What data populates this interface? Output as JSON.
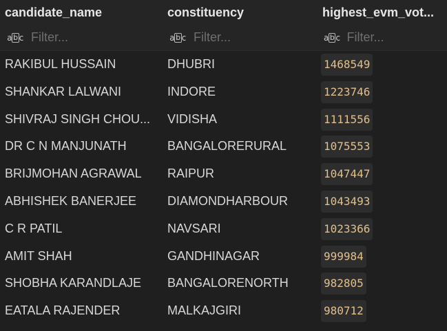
{
  "columns": [
    {
      "name": "candidate_name",
      "filter_placeholder": "Filter..."
    },
    {
      "name": "constituency",
      "filter_placeholder": "Filter..."
    },
    {
      "name": "highest_evm_vot...",
      "filter_placeholder": "Filter..."
    }
  ],
  "filter_icon": "abc-text-type-icon",
  "filter_icon_text": {
    "left": "a",
    "mid": "b",
    "right": "c"
  },
  "colors": {
    "background": "#1f1f1f",
    "header_background": "#252526",
    "number_text": "#e2c08d",
    "number_badge": "#2d2d2d"
  },
  "rows": [
    {
      "candidate_name": "RAKIBUL HUSSAIN",
      "constituency": "DHUBRI",
      "highest_evm_votes": "1468549"
    },
    {
      "candidate_name": "SHANKAR LALWANI",
      "constituency": "INDORE",
      "highest_evm_votes": "1223746"
    },
    {
      "candidate_name": "SHIVRAJ SINGH CHOU...",
      "constituency": "VIDISHA",
      "highest_evm_votes": "1111556"
    },
    {
      "candidate_name": "DR C N MANJUNATH",
      "constituency": "BANGALORERURAL",
      "highest_evm_votes": "1075553"
    },
    {
      "candidate_name": "BRIJMOHAN AGRAWAL",
      "constituency": "RAIPUR",
      "highest_evm_votes": "1047447"
    },
    {
      "candidate_name": "ABHISHEK BANERJEE",
      "constituency": "DIAMONDHARBOUR",
      "highest_evm_votes": "1043493"
    },
    {
      "candidate_name": "C R PATIL",
      "constituency": "NAVSARI",
      "highest_evm_votes": "1023366"
    },
    {
      "candidate_name": "AMIT SHAH",
      "constituency": "GANDHINAGAR",
      "highest_evm_votes": "999984"
    },
    {
      "candidate_name": "SHOBHA KARANDLAJE",
      "constituency": "BANGALORENORTH",
      "highest_evm_votes": "982805"
    },
    {
      "candidate_name": "EATALA RAJENDER",
      "constituency": "MALKAJGIRI",
      "highest_evm_votes": "980712"
    }
  ]
}
